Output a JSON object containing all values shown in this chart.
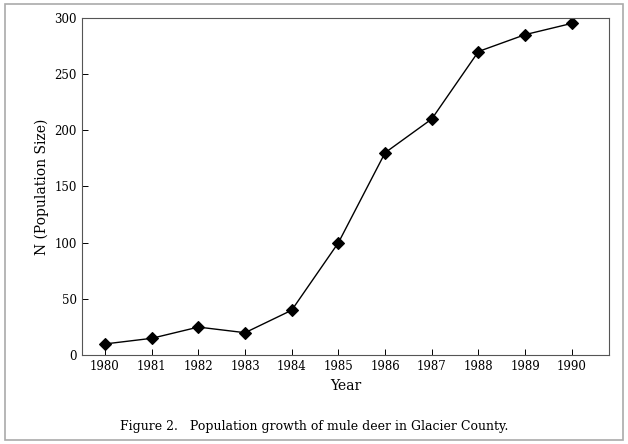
{
  "years": [
    1980,
    1981,
    1982,
    1983,
    1984,
    1985,
    1986,
    1987,
    1988,
    1989,
    1990
  ],
  "population": [
    10,
    15,
    25,
    20,
    40,
    100,
    180,
    210,
    270,
    285,
    295
  ],
  "xlabel": "Year",
  "ylabel": "N (Population Size)",
  "caption": "Figure 2.   Population growth of mule deer in Glacier County.",
  "xlim": [
    1979.5,
    1990.8
  ],
  "ylim": [
    0,
    300
  ],
  "yticks": [
    0,
    50,
    100,
    150,
    200,
    250,
    300
  ],
  "xticks": [
    1980,
    1981,
    1982,
    1983,
    1984,
    1985,
    1986,
    1987,
    1988,
    1989,
    1990
  ],
  "line_color": "#000000",
  "marker": "D",
  "marker_size": 6,
  "marker_facecolor": "#000000",
  "bg_color": "#ffffff",
  "fig_bg": "#ffffff",
  "outer_border_color": "#aaaaaa",
  "spine_color": "#555555"
}
